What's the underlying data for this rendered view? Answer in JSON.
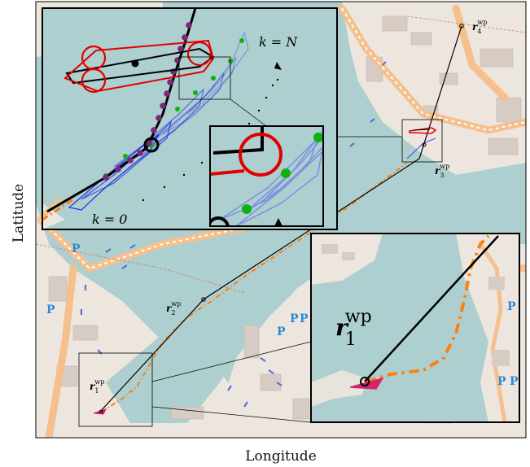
{
  "axes": {
    "xlabel": "Longitude",
    "ylabel": "Latitude"
  },
  "labels": {
    "wp1": "r",
    "wp1_sub": "1",
    "wp2": "r",
    "wp2_sub": "2",
    "wp3": "r",
    "wp3_sub": "3",
    "wp4": "r",
    "wp4_sub": "4",
    "wp_sup": "wp",
    "horizon_start": "k = 0",
    "horizon_end": "k = N"
  },
  "colors": {
    "water": "#aecfcf",
    "land": "#ede6df",
    "road": "#f5c08d",
    "vessel_outline": "#e00000",
    "planned_path": "#000000",
    "traveled_path": "#ff7f0e",
    "prediction": "#1a1ae6",
    "obstacle_points": "#0db30d",
    "horizon_points": "#7a2878"
  }
}
